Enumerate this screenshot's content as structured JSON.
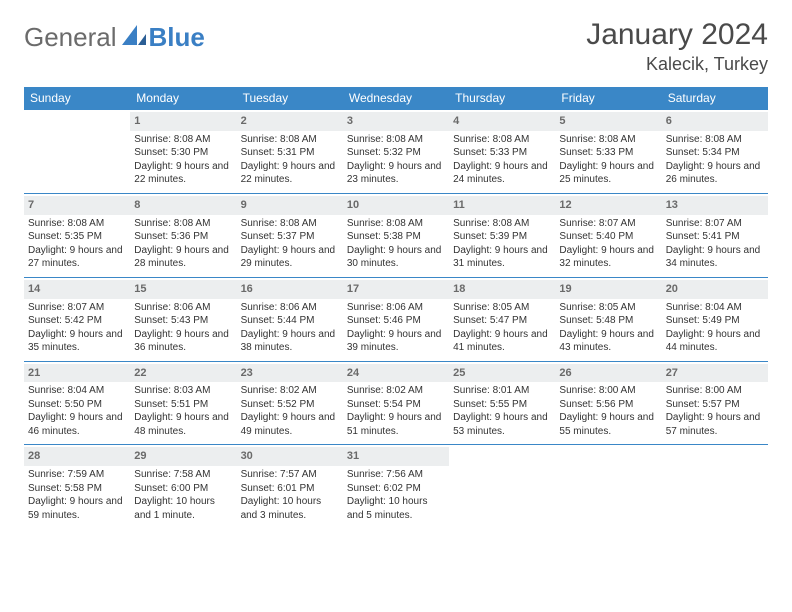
{
  "brand": {
    "part1": "General",
    "part2": "Blue"
  },
  "title": "January 2024",
  "location": "Kalecik, Turkey",
  "colors": {
    "header_bg": "#3a87c7",
    "header_fg": "#ffffff",
    "daynum_bg": "#eceeef",
    "daynum_fg": "#6a6a6a",
    "rule": "#3a87c7",
    "text": "#333333",
    "logo_gray": "#6b6b6b",
    "logo_blue": "#3a7fc4"
  },
  "weekdays": [
    "Sunday",
    "Monday",
    "Tuesday",
    "Wednesday",
    "Thursday",
    "Friday",
    "Saturday"
  ],
  "weeks": [
    [
      {
        "empty": true
      },
      {
        "day": "1",
        "sunrise": "Sunrise: 8:08 AM",
        "sunset": "Sunset: 5:30 PM",
        "daylight": "Daylight: 9 hours and 22 minutes."
      },
      {
        "day": "2",
        "sunrise": "Sunrise: 8:08 AM",
        "sunset": "Sunset: 5:31 PM",
        "daylight": "Daylight: 9 hours and 22 minutes."
      },
      {
        "day": "3",
        "sunrise": "Sunrise: 8:08 AM",
        "sunset": "Sunset: 5:32 PM",
        "daylight": "Daylight: 9 hours and 23 minutes."
      },
      {
        "day": "4",
        "sunrise": "Sunrise: 8:08 AM",
        "sunset": "Sunset: 5:33 PM",
        "daylight": "Daylight: 9 hours and 24 minutes."
      },
      {
        "day": "5",
        "sunrise": "Sunrise: 8:08 AM",
        "sunset": "Sunset: 5:33 PM",
        "daylight": "Daylight: 9 hours and 25 minutes."
      },
      {
        "day": "6",
        "sunrise": "Sunrise: 8:08 AM",
        "sunset": "Sunset: 5:34 PM",
        "daylight": "Daylight: 9 hours and 26 minutes."
      }
    ],
    [
      {
        "day": "7",
        "sunrise": "Sunrise: 8:08 AM",
        "sunset": "Sunset: 5:35 PM",
        "daylight": "Daylight: 9 hours and 27 minutes."
      },
      {
        "day": "8",
        "sunrise": "Sunrise: 8:08 AM",
        "sunset": "Sunset: 5:36 PM",
        "daylight": "Daylight: 9 hours and 28 minutes."
      },
      {
        "day": "9",
        "sunrise": "Sunrise: 8:08 AM",
        "sunset": "Sunset: 5:37 PM",
        "daylight": "Daylight: 9 hours and 29 minutes."
      },
      {
        "day": "10",
        "sunrise": "Sunrise: 8:08 AM",
        "sunset": "Sunset: 5:38 PM",
        "daylight": "Daylight: 9 hours and 30 minutes."
      },
      {
        "day": "11",
        "sunrise": "Sunrise: 8:08 AM",
        "sunset": "Sunset: 5:39 PM",
        "daylight": "Daylight: 9 hours and 31 minutes."
      },
      {
        "day": "12",
        "sunrise": "Sunrise: 8:07 AM",
        "sunset": "Sunset: 5:40 PM",
        "daylight": "Daylight: 9 hours and 32 minutes."
      },
      {
        "day": "13",
        "sunrise": "Sunrise: 8:07 AM",
        "sunset": "Sunset: 5:41 PM",
        "daylight": "Daylight: 9 hours and 34 minutes."
      }
    ],
    [
      {
        "day": "14",
        "sunrise": "Sunrise: 8:07 AM",
        "sunset": "Sunset: 5:42 PM",
        "daylight": "Daylight: 9 hours and 35 minutes."
      },
      {
        "day": "15",
        "sunrise": "Sunrise: 8:06 AM",
        "sunset": "Sunset: 5:43 PM",
        "daylight": "Daylight: 9 hours and 36 minutes."
      },
      {
        "day": "16",
        "sunrise": "Sunrise: 8:06 AM",
        "sunset": "Sunset: 5:44 PM",
        "daylight": "Daylight: 9 hours and 38 minutes."
      },
      {
        "day": "17",
        "sunrise": "Sunrise: 8:06 AM",
        "sunset": "Sunset: 5:46 PM",
        "daylight": "Daylight: 9 hours and 39 minutes."
      },
      {
        "day": "18",
        "sunrise": "Sunrise: 8:05 AM",
        "sunset": "Sunset: 5:47 PM",
        "daylight": "Daylight: 9 hours and 41 minutes."
      },
      {
        "day": "19",
        "sunrise": "Sunrise: 8:05 AM",
        "sunset": "Sunset: 5:48 PM",
        "daylight": "Daylight: 9 hours and 43 minutes."
      },
      {
        "day": "20",
        "sunrise": "Sunrise: 8:04 AM",
        "sunset": "Sunset: 5:49 PM",
        "daylight": "Daylight: 9 hours and 44 minutes."
      }
    ],
    [
      {
        "day": "21",
        "sunrise": "Sunrise: 8:04 AM",
        "sunset": "Sunset: 5:50 PM",
        "daylight": "Daylight: 9 hours and 46 minutes."
      },
      {
        "day": "22",
        "sunrise": "Sunrise: 8:03 AM",
        "sunset": "Sunset: 5:51 PM",
        "daylight": "Daylight: 9 hours and 48 minutes."
      },
      {
        "day": "23",
        "sunrise": "Sunrise: 8:02 AM",
        "sunset": "Sunset: 5:52 PM",
        "daylight": "Daylight: 9 hours and 49 minutes."
      },
      {
        "day": "24",
        "sunrise": "Sunrise: 8:02 AM",
        "sunset": "Sunset: 5:54 PM",
        "daylight": "Daylight: 9 hours and 51 minutes."
      },
      {
        "day": "25",
        "sunrise": "Sunrise: 8:01 AM",
        "sunset": "Sunset: 5:55 PM",
        "daylight": "Daylight: 9 hours and 53 minutes."
      },
      {
        "day": "26",
        "sunrise": "Sunrise: 8:00 AM",
        "sunset": "Sunset: 5:56 PM",
        "daylight": "Daylight: 9 hours and 55 minutes."
      },
      {
        "day": "27",
        "sunrise": "Sunrise: 8:00 AM",
        "sunset": "Sunset: 5:57 PM",
        "daylight": "Daylight: 9 hours and 57 minutes."
      }
    ],
    [
      {
        "day": "28",
        "sunrise": "Sunrise: 7:59 AM",
        "sunset": "Sunset: 5:58 PM",
        "daylight": "Daylight: 9 hours and 59 minutes."
      },
      {
        "day": "29",
        "sunrise": "Sunrise: 7:58 AM",
        "sunset": "Sunset: 6:00 PM",
        "daylight": "Daylight: 10 hours and 1 minute."
      },
      {
        "day": "30",
        "sunrise": "Sunrise: 7:57 AM",
        "sunset": "Sunset: 6:01 PM",
        "daylight": "Daylight: 10 hours and 3 minutes."
      },
      {
        "day": "31",
        "sunrise": "Sunrise: 7:56 AM",
        "sunset": "Sunset: 6:02 PM",
        "daylight": "Daylight: 10 hours and 5 minutes."
      },
      {
        "empty": true
      },
      {
        "empty": true
      },
      {
        "empty": true
      }
    ]
  ]
}
